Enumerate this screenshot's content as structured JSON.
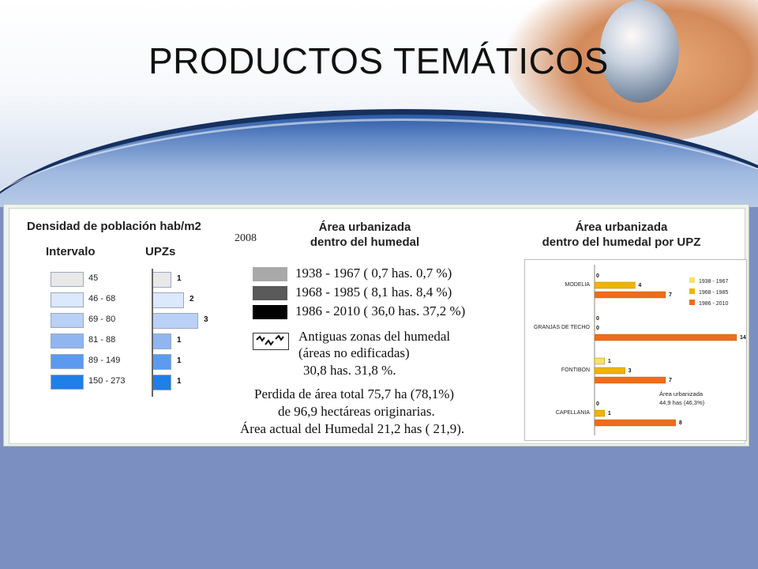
{
  "slide": {
    "title": "PRODUCTOS TEMÁTICOS",
    "colors": {
      "background": "#7b8fc1",
      "swoosh_dark": "#16305f",
      "swoosh_light": "#9fb8df"
    }
  },
  "density": {
    "title": "Densidad de población hab/m2",
    "col_intervalo": "Intervalo",
    "col_upz": "UPZs",
    "rows": [
      {
        "interval": "45",
        "upz": "1",
        "color": "#e8e8e8"
      },
      {
        "interval": "46 - 68",
        "upz": "2",
        "color": "#dce8fb"
      },
      {
        "interval": "69 - 80",
        "upz": "3",
        "color": "#b9d1f6"
      },
      {
        "interval": "81 - 88",
        "upz": "1",
        "color": "#8fb6f1"
      },
      {
        "interval": "89 - 149",
        "upz": "1",
        "color": "#5c9af0"
      },
      {
        "interval": "150 - 273",
        "upz": "1",
        "color": "#1e7fe6"
      }
    ]
  },
  "urban": {
    "year": "2008",
    "title_line1": "Área urbanizada",
    "title_line2": "dentro del humedal",
    "periods": [
      {
        "label": "1938 - 1967 ( 0,7 has. 0,7 %)",
        "color": "#a9a9a9"
      },
      {
        "label": "1968 - 1985 ( 8,1 has. 8,4 %)",
        "color": "#595959"
      },
      {
        "label": "1986 - 2010 ( 36,0 has. 37,2 %)",
        "color": "#000000"
      }
    ],
    "wetland_line1": "Antiguas zonas del  humedal",
    "wetland_line2": "(áreas no edificadas)",
    "wetland_line3": "30,8 has. 31,8 %.",
    "loss_line1": "Perdida de área total 75,7 ha (78,1%)",
    "loss_line2": "de 96,9 hectáreas originarias.",
    "loss_line3": "Área actual del Humedal 21,2 has ( 21,9)."
  },
  "upz_chart_header": {
    "title_line1": "Área urbanizada",
    "title_line2": "dentro del humedal  por UPZ"
  },
  "chart_data": {
    "type": "bar",
    "orientation": "horizontal",
    "categories": [
      "MODELIA",
      "GRANJAS DE TECHO",
      "FONTIBON",
      "CAPELLANIA"
    ],
    "series": [
      {
        "name": "1938 - 1967",
        "values": [
          0,
          0,
          1,
          0
        ],
        "color": "#f3e463"
      },
      {
        "name": "1968 - 1985",
        "values": [
          4,
          0,
          3,
          1
        ],
        "color": "#f0b400"
      },
      {
        "name": "1986 - 2010",
        "values": [
          7,
          14,
          7,
          8
        ],
        "color": "#f26b1b"
      }
    ],
    "xlim": [
      0,
      14
    ],
    "grid": false,
    "legend": "right",
    "annotation_line1": "Área urbanizada",
    "annotation_line2": "44,9 has (46,3%)"
  }
}
